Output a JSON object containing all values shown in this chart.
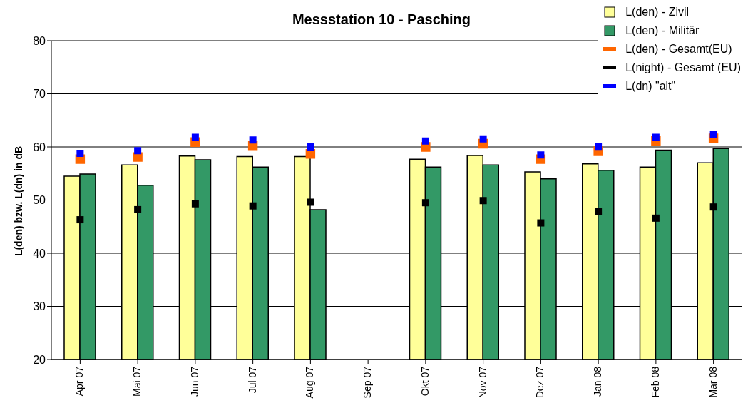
{
  "chart_data": {
    "type": "bar",
    "title": "Messstation 10 - Pasching",
    "ylabel": "L(den) bzw. L(dn) in dB",
    "categories": [
      "Apr 07",
      "Mai 07",
      "Jun 07",
      "Jul 07",
      "Aug 07",
      "Sep 07",
      "Okt 07",
      "Nov 07",
      "Dez 07",
      "Jan 08",
      "Feb 08",
      "Mar 08"
    ],
    "series": [
      {
        "name": "L(den) - Zivil",
        "color": "#ffff99",
        "values": [
          54.5,
          56.6,
          58.3,
          58.2,
          58.2,
          null,
          57.7,
          58.4,
          55.3,
          56.8,
          56.2,
          57.0
        ]
      },
      {
        "name": "L(den) - Militär",
        "color": "#339966",
        "values": [
          54.9,
          52.8,
          57.6,
          56.2,
          48.2,
          null,
          56.2,
          56.6,
          54.0,
          55.6,
          59.4,
          59.7
        ]
      },
      {
        "name": "L(den) - Gesamt(EU)",
        "type": "scatter",
        "color": "#ff6600",
        "values": [
          57.7,
          58.1,
          60.9,
          60.3,
          58.7,
          null,
          60.0,
          60.6,
          57.7,
          59.2,
          61.1,
          61.6
        ]
      },
      {
        "name": "L(night) - Gesamt (EU)",
        "type": "scatter",
        "color": "#000000",
        "values": [
          46.3,
          48.2,
          49.3,
          48.9,
          49.6,
          null,
          49.5,
          49.9,
          45.7,
          47.8,
          46.6,
          48.7
        ]
      },
      {
        "name": "L(dn) \"alt\"",
        "type": "scatter",
        "color": "#0000ff",
        "values": [
          58.8,
          59.3,
          61.8,
          61.3,
          60.0,
          null,
          61.1,
          61.5,
          58.5,
          60.1,
          61.8,
          62.3
        ]
      }
    ],
    "ylim": [
      20,
      80
    ],
    "yticks": [
      20,
      30,
      40,
      50,
      60,
      70,
      80
    ],
    "grid": "y",
    "marker": "square",
    "legend": "top right"
  }
}
